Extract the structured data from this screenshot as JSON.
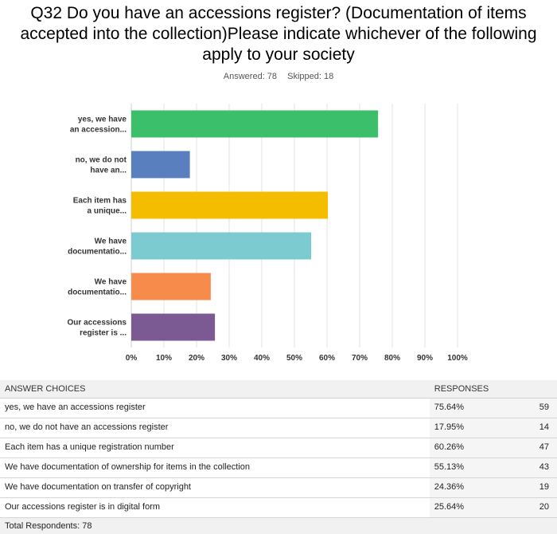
{
  "title_lines": [
    "Q32 Do you have an accessions register? (Documentation of items",
    "accepted into the collection)Please indicate whichever of the following",
    "apply to your society"
  ],
  "answered": "Answered: 78",
  "skipped": "Skipped: 18",
  "colors": {
    "grid": "#e3e3e3",
    "axis": "#cfcfcf"
  },
  "chart_data": {
    "type": "bar",
    "orientation": "horizontal",
    "categories": [
      [
        "yes, we have",
        "an accession..."
      ],
      [
        "no, we do not",
        "have an..."
      ],
      [
        "Each item has",
        "a unique..."
      ],
      [
        "We have",
        "documentatio..."
      ],
      [
        "We have",
        "documentatio..."
      ],
      [
        "Our accessions",
        "register is ..."
      ]
    ],
    "values": [
      75.64,
      17.95,
      60.26,
      55.13,
      24.36,
      25.64
    ],
    "bar_colors": [
      "#3cbf6b",
      "#5a7fbf",
      "#f5bd00",
      "#7ccbd0",
      "#f68b4c",
      "#7b5a94"
    ],
    "x_ticks": [
      "0%",
      "10%",
      "20%",
      "30%",
      "40%",
      "50%",
      "60%",
      "70%",
      "80%",
      "90%",
      "100%"
    ],
    "xlim": [
      0,
      100
    ],
    "grid": true
  },
  "table": {
    "header_choice": "ANSWER CHOICES",
    "header_responses": "RESPONSES",
    "rows": [
      {
        "choice": "yes, we have an accessions register",
        "pct": "75.64%",
        "count": "59"
      },
      {
        "choice": "no, we do not have an accessions register",
        "pct": "17.95%",
        "count": "14"
      },
      {
        "choice": "Each item has a unique registration number",
        "pct": "60.26%",
        "count": "47"
      },
      {
        "choice": "We have documentation of ownership for items in the collection",
        "pct": "55.13%",
        "count": "43"
      },
      {
        "choice": "We have documentation on transfer of copyright",
        "pct": "24.36%",
        "count": "19"
      },
      {
        "choice": "Our accessions register is in digital form",
        "pct": "25.64%",
        "count": "20"
      }
    ],
    "total": "Total Respondents: 78"
  }
}
